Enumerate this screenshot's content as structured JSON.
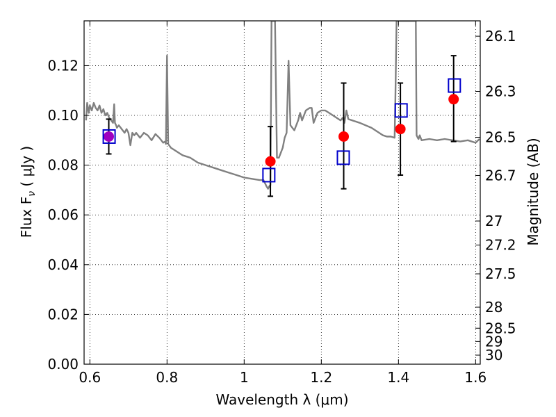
{
  "chart_data": {
    "type": "scatter",
    "xlabel": "Wavelength  λ (μm)",
    "ylabel": "Flux  F",
    "ylabel_sub": "ν",
    "ylabel_unit": "  ( μJy )",
    "y2label": "Magnitude (AB)",
    "xlim": [
      0.585,
      1.612
    ],
    "ylim": [
      0.0,
      0.138
    ],
    "grid": true,
    "x_ticks": [
      0.6,
      0.8,
      1.0,
      1.2,
      1.4,
      1.6
    ],
    "x_tick_labels": [
      "0.6",
      "0.8",
      "1",
      "1.2",
      "1.4",
      "1.6"
    ],
    "y_ticks": [
      0.0,
      0.02,
      0.04,
      0.06,
      0.08,
      0.1,
      0.12
    ],
    "y_tick_labels": [
      "0.00",
      "0.02",
      "0.04",
      "0.06",
      "0.08",
      "0.10",
      "0.12"
    ],
    "y2_ticks": [
      26.1,
      26.3,
      26.5,
      26.7,
      27,
      27.2,
      27.5,
      28,
      28.5,
      29,
      30
    ],
    "y2_tick_labels": [
      "26.1",
      "26.3",
      "26.5",
      "26.7",
      "27",
      "27.2",
      "27.5",
      "28",
      "28.5",
      "29",
      "30"
    ],
    "colors": {
      "model": "#808080",
      "observed": "#000000",
      "model_band": "#0000cc",
      "photometry": "#ff0000",
      "overlap": "#a000c0"
    },
    "model_spectrum": {
      "x": [
        0.59,
        0.593,
        0.597,
        0.6,
        0.605,
        0.61,
        0.615,
        0.62,
        0.625,
        0.63,
        0.635,
        0.64,
        0.645,
        0.65,
        0.655,
        0.66,
        0.663,
        0.665,
        0.668,
        0.67,
        0.675,
        0.68,
        0.685,
        0.69,
        0.695,
        0.7,
        0.705,
        0.71,
        0.715,
        0.72,
        0.73,
        0.74,
        0.75,
        0.76,
        0.77,
        0.78,
        0.79,
        0.795,
        0.797,
        0.8,
        0.803,
        0.81,
        0.82,
        0.83,
        0.84,
        0.86,
        0.88,
        0.9,
        0.92,
        0.94,
        0.96,
        0.98,
        1.0,
        1.02,
        1.04,
        1.05,
        1.058,
        1.062,
        1.065,
        1.068,
        1.071,
        1.075,
        1.08,
        1.085,
        1.09,
        1.1,
        1.105,
        1.11,
        1.115,
        1.12,
        1.13,
        1.14,
        1.145,
        1.15,
        1.16,
        1.17,
        1.175,
        1.18,
        1.185,
        1.19,
        1.2,
        1.21,
        1.22,
        1.23,
        1.24,
        1.25,
        1.255,
        1.26,
        1.265,
        1.27,
        1.3,
        1.33,
        1.36,
        1.37,
        1.38,
        1.39,
        1.392,
        1.395,
        1.398,
        1.4,
        1.42,
        1.44,
        1.445,
        1.447,
        1.45,
        1.452,
        1.455,
        1.46,
        1.48,
        1.5,
        1.52,
        1.54,
        1.56,
        1.58,
        1.6,
        1.61
      ],
      "y": [
        0.098,
        0.105,
        0.101,
        0.104,
        0.102,
        0.105,
        0.103,
        0.102,
        0.104,
        0.101,
        0.1025,
        0.1,
        0.101,
        0.099,
        0.098,
        0.097,
        0.1045,
        0.097,
        0.096,
        0.095,
        0.096,
        0.095,
        0.094,
        0.093,
        0.0945,
        0.093,
        0.088,
        0.093,
        0.092,
        0.093,
        0.091,
        0.093,
        0.092,
        0.09,
        0.0925,
        0.091,
        0.089,
        0.0895,
        0.0885,
        0.124,
        0.0885,
        0.087,
        0.086,
        0.085,
        0.084,
        0.083,
        0.081,
        0.08,
        0.079,
        0.078,
        0.077,
        0.076,
        0.075,
        0.0745,
        0.074,
        0.074,
        0.0715,
        0.0705,
        0.0715,
        0.072,
        0.138,
        0.138,
        0.138,
        0.083,
        0.083,
        0.087,
        0.091,
        0.093,
        0.122,
        0.096,
        0.094,
        0.098,
        0.101,
        0.098,
        0.102,
        0.103,
        0.103,
        0.097,
        0.099,
        0.101,
        0.102,
        0.102,
        0.101,
        0.1,
        0.099,
        0.098,
        0.099,
        0.097,
        0.102,
        0.0985,
        0.097,
        0.095,
        0.092,
        0.0915,
        0.0915,
        0.091,
        0.107,
        0.138,
        0.138,
        0.138,
        0.138,
        0.138,
        0.138,
        0.092,
        0.091,
        0.0905,
        0.092,
        0.09,
        0.0905,
        0.09,
        0.0905,
        0.09,
        0.0895,
        0.09,
        0.089,
        0.0905
      ]
    },
    "observed_points": [
      {
        "x": 0.649,
        "y": 0.0915,
        "yerr_low": 0.0845,
        "yerr_high": 0.0985
      },
      {
        "x": 1.068,
        "y": 0.0815,
        "yerr_low": 0.0675,
        "yerr_high": 0.0955
      },
      {
        "x": 1.258,
        "y": 0.0915,
        "yerr_low": 0.0705,
        "yerr_high": 0.113
      },
      {
        "x": 1.405,
        "y": 0.0945,
        "yerr_low": 0.076,
        "yerr_high": 0.113
      },
      {
        "x": 1.543,
        "y": 0.1065,
        "yerr_low": 0.0895,
        "yerr_high": 0.124
      }
    ],
    "model_band_points": [
      {
        "x": 0.65,
        "y": 0.0915
      },
      {
        "x": 1.064,
        "y": 0.076
      },
      {
        "x": 1.257,
        "y": 0.083
      },
      {
        "x": 1.407,
        "y": 0.102
      },
      {
        "x": 1.545,
        "y": 0.112
      }
    ]
  }
}
